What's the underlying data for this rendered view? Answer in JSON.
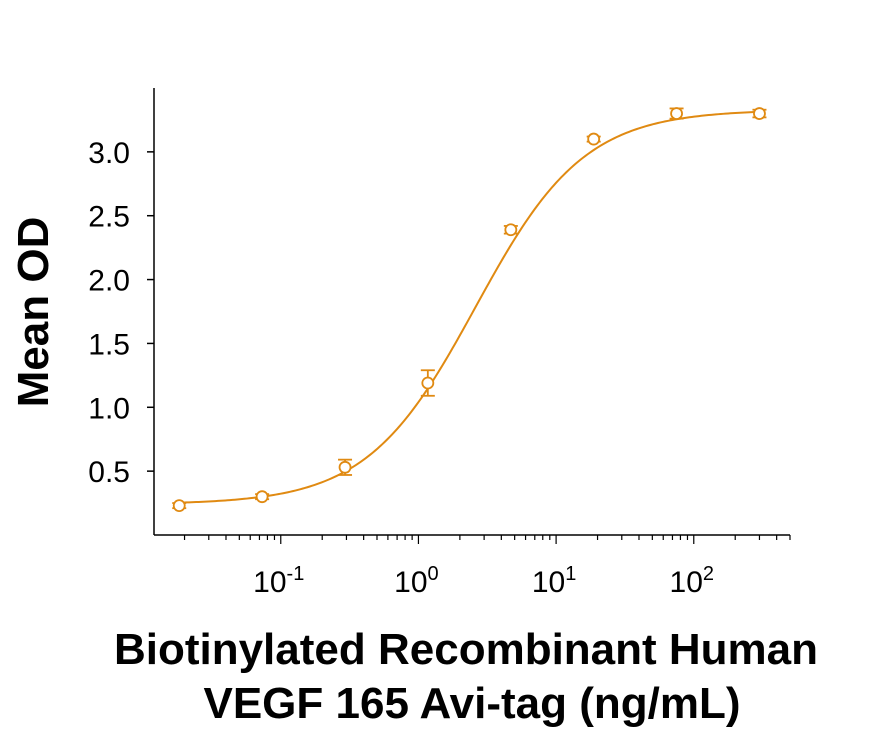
{
  "chart_data": {
    "type": "scatter",
    "title": "",
    "xlabel_lines": [
      "Biotinylated Recombinant Human",
      "VEGF 165 Avi-tag (ng/mL)"
    ],
    "ylabel": "Mean OD",
    "x_scale": "log",
    "xlim": [
      0.012,
      500
    ],
    "ylim": [
      0.0,
      3.5
    ],
    "x_ticks": [
      {
        "value": 0.1,
        "base": "10",
        "exp": "-1"
      },
      {
        "value": 1,
        "base": "10",
        "exp": "0"
      },
      {
        "value": 10,
        "base": "10",
        "exp": "1"
      },
      {
        "value": 100,
        "base": "10",
        "exp": "2"
      }
    ],
    "y_ticks": [
      "0.5",
      "1.0",
      "1.5",
      "2.0",
      "2.5",
      "3.0"
    ],
    "grid": false,
    "legend": "none",
    "color": "#e08a12",
    "series": [
      {
        "points": [
          {
            "x": 0.0183,
            "y": 0.23,
            "err": 0.02
          },
          {
            "x": 0.0732,
            "y": 0.3,
            "err": 0.02
          },
          {
            "x": 0.293,
            "y": 0.53,
            "err": 0.06
          },
          {
            "x": 1.17,
            "y": 1.19,
            "err": 0.1
          },
          {
            "x": 4.69,
            "y": 2.39,
            "err": 0.03
          },
          {
            "x": 18.75,
            "y": 3.1,
            "err": 0.02
          },
          {
            "x": 75,
            "y": 3.3,
            "err": 0.04
          },
          {
            "x": 300,
            "y": 3.3,
            "err": 0.03
          }
        ],
        "fit": {
          "model": "4PL",
          "bottom": 0.24,
          "top": 3.33,
          "ec50": 2.6,
          "hill": 1.1
        }
      }
    ]
  }
}
